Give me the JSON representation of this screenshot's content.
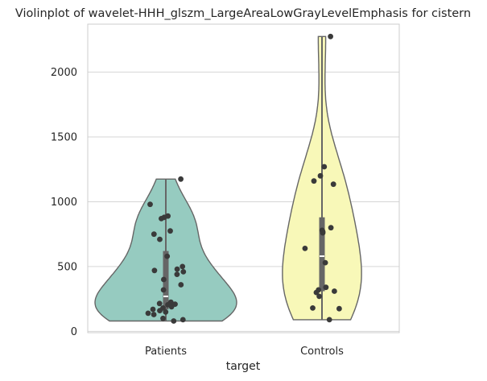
{
  "chart_data": {
    "type": "violin",
    "title": "Violinplot of wavelet-HHH_glszm_LargeAreaLowGrayLevelEmphasis for cistern",
    "xlabel": "target",
    "ylabel": "",
    "categories": [
      "Patients",
      "Controls"
    ],
    "ylim": [
      -10,
      2370
    ],
    "yticks": [
      0,
      500,
      1000,
      1500,
      2000
    ],
    "grid": "horizontal",
    "colors": {
      "Patients": "#96cbc0",
      "Controls": "#f8f8b8",
      "outline": "#666666",
      "points": "#3a3a3a",
      "box": "#666666",
      "median": "#ffffff"
    },
    "series": [
      {
        "category": "Patients",
        "min": 80,
        "q1": 170,
        "median": 270,
        "q3": 620,
        "max": 1175,
        "points": [
          1175,
          980,
          890,
          870,
          880,
          775,
          750,
          710,
          580,
          500,
          480,
          470,
          460,
          440,
          400,
          360,
          320,
          225,
          215,
          210,
          205,
          190,
          180,
          170,
          160,
          150,
          140,
          130,
          100,
          90,
          80
        ]
      },
      {
        "category": "Controls",
        "min": 90,
        "q1": 310,
        "median": 580,
        "q3": 880,
        "max": 2275,
        "points": [
          2275,
          1270,
          1200,
          1160,
          1135,
          800,
          780,
          770,
          760,
          640,
          530,
          340,
          320,
          310,
          300,
          270,
          180,
          175,
          90
        ]
      }
    ]
  }
}
